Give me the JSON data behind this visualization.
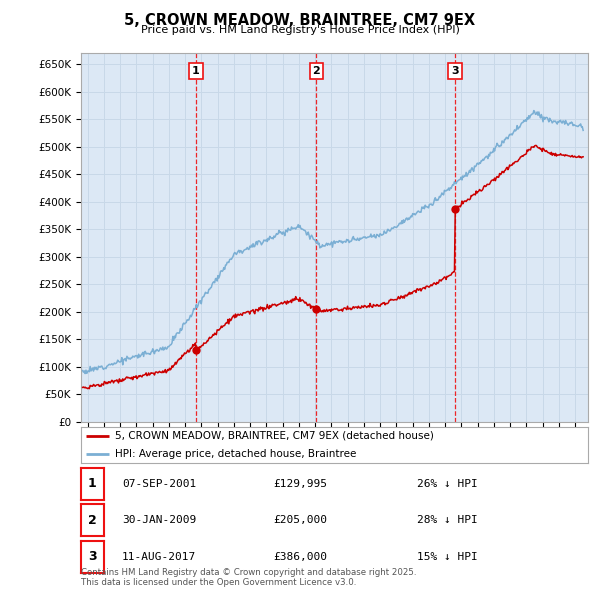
{
  "title": "5, CROWN MEADOW, BRAINTREE, CM7 9EX",
  "subtitle": "Price paid vs. HM Land Registry's House Price Index (HPI)",
  "ylabel_ticks": [
    "£0",
    "£50K",
    "£100K",
    "£150K",
    "£200K",
    "£250K",
    "£300K",
    "£350K",
    "£400K",
    "£450K",
    "£500K",
    "£550K",
    "£600K",
    "£650K"
  ],
  "ytick_values": [
    0,
    50000,
    100000,
    150000,
    200000,
    250000,
    300000,
    350000,
    400000,
    450000,
    500000,
    550000,
    600000,
    650000
  ],
  "ylim": [
    0,
    670000
  ],
  "sale_year_floats": [
    2001.68,
    2009.08,
    2017.61
  ],
  "sale_prices": [
    129995,
    205000,
    386000
  ],
  "sale_labels": [
    "1",
    "2",
    "3"
  ],
  "sale_table": [
    {
      "num": "1",
      "date": "07-SEP-2001",
      "price": "£129,995",
      "hpi": "26% ↓ HPI"
    },
    {
      "num": "2",
      "date": "30-JAN-2009",
      "price": "£205,000",
      "hpi": "28% ↓ HPI"
    },
    {
      "num": "3",
      "date": "11-AUG-2017",
      "price": "£386,000",
      "hpi": "15% ↓ HPI"
    }
  ],
  "legend_line1": "5, CROWN MEADOW, BRAINTREE, CM7 9EX (detached house)",
  "legend_line2": "HPI: Average price, detached house, Braintree",
  "footnote": "Contains HM Land Registry data © Crown copyright and database right 2025.\nThis data is licensed under the Open Government Licence v3.0.",
  "line_color_red": "#CC0000",
  "line_color_blue": "#7BAFD4",
  "grid_color": "#C8D8E8",
  "bg_color": "#DCE8F5",
  "vline_color": "#EE1111",
  "marker_color_red": "#CC0000",
  "xlim_left": 1994.6,
  "xlim_right": 2025.8
}
